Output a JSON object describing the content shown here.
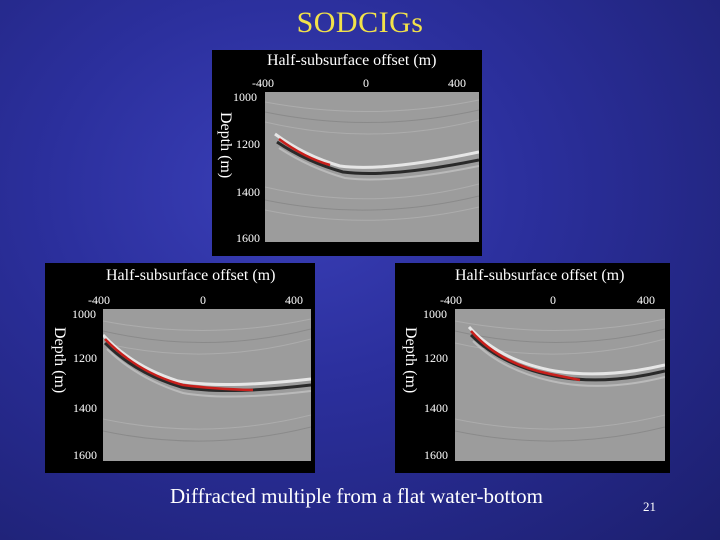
{
  "slide": {
    "title": "SODCIGs",
    "caption": "Diffracted multiple from a flat water-bottom",
    "page_number": "21"
  },
  "panels": [
    {
      "x_title": "Half-subsurface offset (m)",
      "y_title": "Depth (m)",
      "x_ticks": [
        "-400",
        "0",
        "400"
      ],
      "y_ticks": [
        "1000",
        "1200",
        "1400",
        "1600"
      ]
    },
    {
      "x_title": "Half-subsurface offset (m)",
      "y_title": "Depth (m)",
      "x_ticks": [
        "-400",
        "0",
        "400"
      ],
      "y_ticks": [
        "1000",
        "1200",
        "1400",
        "1600"
      ]
    },
    {
      "x_title": "Half-subsurface offset (m)",
      "y_title": "Depth (m)",
      "x_ticks": [
        "-400",
        "0",
        "400"
      ],
      "y_ticks": [
        "1000",
        "1200",
        "1400",
        "1600"
      ]
    }
  ],
  "colors": {
    "title": "#f2e24a",
    "background": "#2b2f9c",
    "image_gray": "#9a9a9a",
    "event_red": "#c8201c"
  }
}
